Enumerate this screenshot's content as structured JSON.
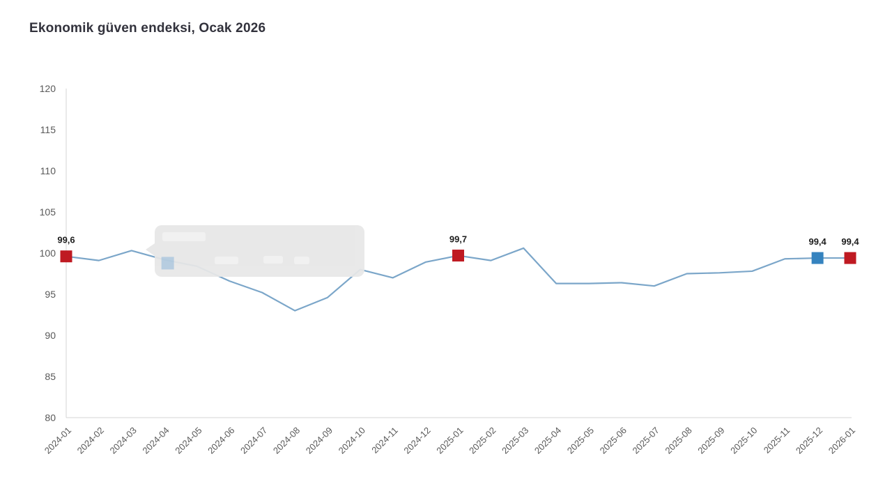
{
  "title": "Ekonomik güven endeksi, Ocak 2026",
  "chart_data": {
    "type": "line",
    "title": "Ekonomik güven endeksi, Ocak 2026",
    "categories": [
      "2024-01",
      "2024-02",
      "2024-03",
      "2024-04",
      "2024-05",
      "2024-06",
      "2024-07",
      "2024-08",
      "2024-09",
      "2024-10",
      "2024-11",
      "2024-12",
      "2025-01",
      "2025-02",
      "2025-03",
      "2025-04",
      "2025-05",
      "2025-06",
      "2025-07",
      "2025-08",
      "2025-09",
      "2025-10",
      "2025-11",
      "2025-12",
      "2026-01"
    ],
    "values": [
      99.6,
      99.1,
      100.3,
      99.2,
      98.4,
      96.6,
      95.2,
      93.0,
      94.6,
      98.0,
      97.0,
      98.9,
      99.7,
      99.1,
      100.6,
      96.3,
      96.3,
      96.4,
      96.0,
      97.5,
      97.6,
      97.8,
      99.3,
      99.4,
      99.4
    ],
    "xlabel": "",
    "ylabel": "",
    "ylim": [
      80,
      120
    ],
    "yticks": [
      80,
      85,
      90,
      95,
      100,
      105,
      110,
      115,
      120
    ],
    "grid": false,
    "legend": "none",
    "line_color": "#7ba6c9",
    "axis_color": "#d4d4d4",
    "highlighted_points": [
      {
        "category": "2024-01",
        "index": 0,
        "value": 99.6,
        "label": "99,6",
        "marker_color": "#bf1a22"
      },
      {
        "category": "2025-01",
        "index": 12,
        "value": 99.7,
        "label": "99,7",
        "marker_color": "#bf1a22"
      },
      {
        "category": "2025-12",
        "index": 23,
        "value": 99.4,
        "label": "99,4",
        "marker_color": "#3583bf"
      },
      {
        "category": "2026-01",
        "index": 24,
        "value": 99.4,
        "label": "99,4",
        "marker_color": "#bf1a22"
      }
    ],
    "ghost_tooltip": {
      "visible": true,
      "anchor_category": "2024-04",
      "anchor_index": 3,
      "box_color": "#e7e7e7",
      "ghost_marker_color": "#85b2d8"
    }
  }
}
